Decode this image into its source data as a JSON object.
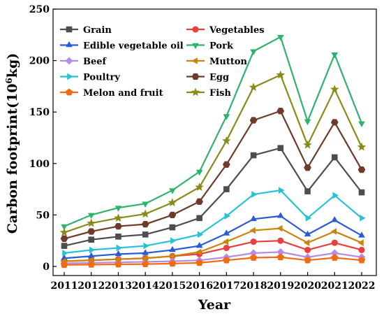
{
  "chart_data": {
    "type": "line",
    "xlabel": "Year",
    "ylabel": "Carbon footprint(10",
    "ylabel_sup": "6",
    "ylabel_end": "kg)",
    "ylim": [
      0,
      250
    ],
    "yticks": [
      0,
      50,
      100,
      150,
      200,
      250
    ],
    "x": [
      "2011",
      "2012",
      "2013",
      "2014",
      "2015",
      "2016",
      "2017",
      "2018",
      "2019",
      "2020",
      "2021",
      "2022"
    ],
    "legend_position": "top-left",
    "grid": false,
    "series": [
      {
        "name": "Grain",
        "color": "#4d4d4d",
        "marker": "square",
        "values": [
          20,
          26,
          29,
          31,
          38,
          47,
          75,
          108,
          115,
          73,
          106,
          72
        ]
      },
      {
        "name": "Vegetables",
        "color": "#e8403f",
        "marker": "circle",
        "values": [
          5,
          6,
          7,
          8,
          10,
          12,
          18,
          24,
          25,
          16,
          23,
          16
        ]
      },
      {
        "name": "Edible vegetable oil",
        "color": "#2a5bd7",
        "marker": "triangle-up",
        "values": [
          8,
          10,
          12,
          13,
          16,
          20,
          32,
          46,
          49,
          31,
          45,
          30
        ]
      },
      {
        "name": "Pork",
        "color": "#2fb36c",
        "marker": "triangle-down",
        "values": [
          39,
          50,
          57,
          61,
          74,
          92,
          146,
          209,
          223,
          141,
          206,
          139
        ]
      },
      {
        "name": "Beef",
        "color": "#b58be8",
        "marker": "diamond",
        "values": [
          3,
          3.5,
          4,
          4.5,
          5,
          6,
          9,
          13,
          14,
          9,
          13,
          9
        ]
      },
      {
        "name": "Mutton",
        "color": "#c9850c",
        "marker": "triangle-left",
        "values": [
          5,
          6,
          7,
          8,
          10,
          14,
          24,
          35,
          37,
          23,
          34,
          23
        ]
      },
      {
        "name": "Poultry",
        "color": "#27c2d6",
        "marker": "triangle-right",
        "values": [
          13,
          16,
          18,
          20,
          25,
          31,
          49,
          70,
          74,
          47,
          69,
          47
        ]
      },
      {
        "name": "Egg",
        "color": "#6e3a2a",
        "marker": "hexagon",
        "values": [
          27,
          34,
          39,
          41,
          50,
          63,
          99,
          142,
          151,
          96,
          140,
          94
        ]
      },
      {
        "name": "Melon and fruit",
        "color": "#f36a10",
        "marker": "pentagon",
        "values": [
          1.5,
          1.8,
          2,
          2.3,
          2.8,
          3.5,
          6,
          8.5,
          9,
          6,
          8.5,
          6
        ]
      },
      {
        "name": "Fish",
        "color": "#8a8a1a",
        "marker": "star",
        "values": [
          33,
          42,
          47,
          51,
          62,
          77,
          122,
          174,
          186,
          118,
          172,
          116
        ]
      }
    ]
  }
}
